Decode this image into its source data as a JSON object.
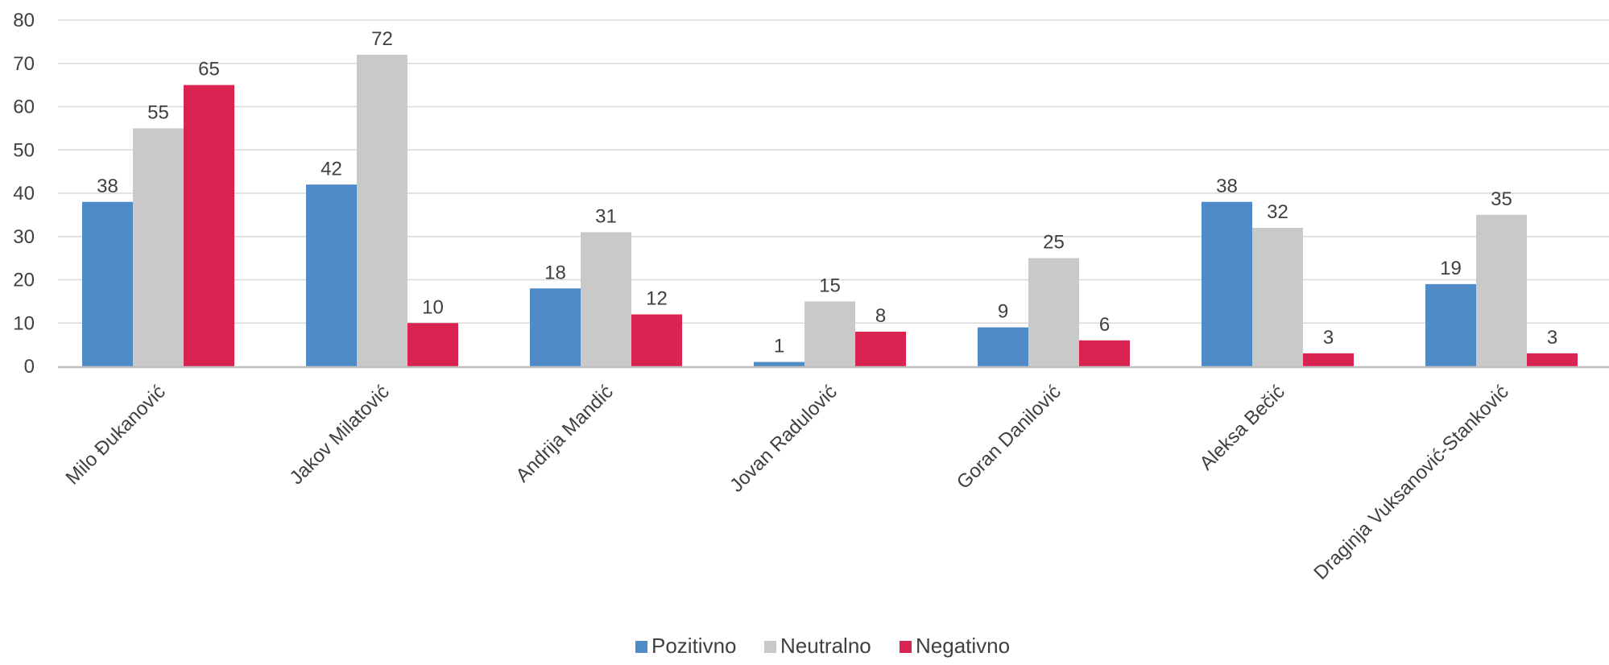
{
  "chart_data": {
    "type": "bar",
    "title": "",
    "xlabel": "",
    "ylabel": "",
    "ylim": [
      0,
      80
    ],
    "yticks": [
      0,
      10,
      20,
      30,
      40,
      50,
      60,
      70,
      80
    ],
    "grid": true,
    "legend_position": "bottom",
    "categories": [
      "Milo Đukanović",
      "Jakov Milatović",
      "Andrija Mandić",
      "Jovan Radulović",
      "Goran Danilović",
      "Aleksa Bečić",
      "Draginja Vuksanović-Stanković"
    ],
    "series": [
      {
        "name": "Pozitivno",
        "color": "#4f8bc6",
        "values": [
          38,
          42,
          18,
          1,
          9,
          38,
          19
        ]
      },
      {
        "name": "Neutralno",
        "color": "#c9c9c9",
        "values": [
          55,
          72,
          31,
          15,
          25,
          32,
          35
        ]
      },
      {
        "name": "Negativno",
        "color": "#d92452",
        "values": [
          65,
          10,
          12,
          8,
          6,
          3,
          3
        ]
      }
    ]
  }
}
